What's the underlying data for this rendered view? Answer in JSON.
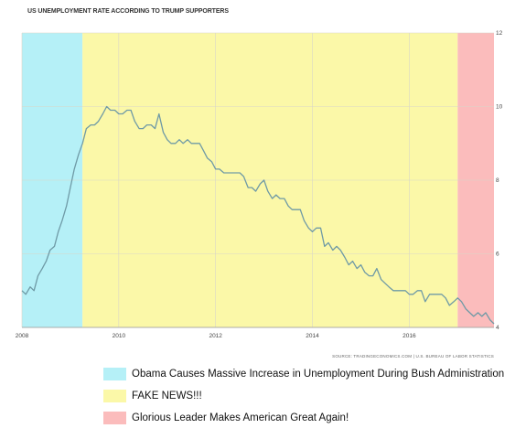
{
  "chart_data": {
    "type": "line",
    "title": "US UNEMPLOYMENT RATE ACCORDING TO TRUMP SUPPORTERS",
    "source": "SOURCE: TRADINGECONOMICS.COM | U.S. BUREAU OF LABOR STATISTICS",
    "xlim": [
      2008.0,
      2017.75
    ],
    "ylim": [
      4,
      12
    ],
    "x_ticks": [
      2008,
      2010,
      2012,
      2014,
      2016
    ],
    "y_ticks": [
      4,
      6,
      8,
      10,
      12
    ],
    "y_axis_side": "right",
    "grid": true,
    "legend_position": "bottom",
    "background_bands": [
      {
        "start": 2008.0,
        "end": 2009.25,
        "color": "#b5f0f7",
        "label": "Obama Causes Massive Increase in Unemployment During Bush Administration"
      },
      {
        "start": 2009.25,
        "end": 2017.0,
        "color": "#fbf8a8",
        "label": "FAKE NEWS!!!"
      },
      {
        "start": 2017.0,
        "end": 2017.75,
        "color": "#fbbcbc",
        "label": "Glorious Leader Makes American Great Again!"
      }
    ],
    "series": [
      {
        "color": "#6f9aa6",
        "points": [
          [
            2008.0,
            5.0
          ],
          [
            2008.08,
            4.9
          ],
          [
            2008.17,
            5.1
          ],
          [
            2008.25,
            5.0
          ],
          [
            2008.33,
            5.4
          ],
          [
            2008.42,
            5.6
          ],
          [
            2008.5,
            5.8
          ],
          [
            2008.58,
            6.1
          ],
          [
            2008.67,
            6.2
          ],
          [
            2008.75,
            6.6
          ],
          [
            2008.83,
            6.9
          ],
          [
            2008.92,
            7.3
          ],
          [
            2009.0,
            7.8
          ],
          [
            2009.08,
            8.3
          ],
          [
            2009.17,
            8.7
          ],
          [
            2009.25,
            9.0
          ],
          [
            2009.33,
            9.4
          ],
          [
            2009.42,
            9.5
          ],
          [
            2009.5,
            9.5
          ],
          [
            2009.58,
            9.6
          ],
          [
            2009.67,
            9.8
          ],
          [
            2009.75,
            10.0
          ],
          [
            2009.83,
            9.9
          ],
          [
            2009.92,
            9.9
          ],
          [
            2010.0,
            9.8
          ],
          [
            2010.08,
            9.8
          ],
          [
            2010.17,
            9.9
          ],
          [
            2010.25,
            9.9
          ],
          [
            2010.33,
            9.6
          ],
          [
            2010.42,
            9.4
          ],
          [
            2010.5,
            9.4
          ],
          [
            2010.58,
            9.5
          ],
          [
            2010.67,
            9.5
          ],
          [
            2010.75,
            9.4
          ],
          [
            2010.83,
            9.8
          ],
          [
            2010.92,
            9.3
          ],
          [
            2011.0,
            9.1
          ],
          [
            2011.08,
            9.0
          ],
          [
            2011.17,
            9.0
          ],
          [
            2011.25,
            9.1
          ],
          [
            2011.33,
            9.0
          ],
          [
            2011.42,
            9.1
          ],
          [
            2011.5,
            9.0
          ],
          [
            2011.58,
            9.0
          ],
          [
            2011.67,
            9.0
          ],
          [
            2011.75,
            8.8
          ],
          [
            2011.83,
            8.6
          ],
          [
            2011.92,
            8.5
          ],
          [
            2012.0,
            8.3
          ],
          [
            2012.08,
            8.3
          ],
          [
            2012.17,
            8.2
          ],
          [
            2012.25,
            8.2
          ],
          [
            2012.33,
            8.2
          ],
          [
            2012.42,
            8.2
          ],
          [
            2012.5,
            8.2
          ],
          [
            2012.58,
            8.1
          ],
          [
            2012.67,
            7.8
          ],
          [
            2012.75,
            7.8
          ],
          [
            2012.83,
            7.7
          ],
          [
            2012.92,
            7.9
          ],
          [
            2013.0,
            8.0
          ],
          [
            2013.08,
            7.7
          ],
          [
            2013.17,
            7.5
          ],
          [
            2013.25,
            7.6
          ],
          [
            2013.33,
            7.5
          ],
          [
            2013.42,
            7.5
          ],
          [
            2013.5,
            7.3
          ],
          [
            2013.58,
            7.2
          ],
          [
            2013.67,
            7.2
          ],
          [
            2013.75,
            7.2
          ],
          [
            2013.83,
            6.9
          ],
          [
            2013.92,
            6.7
          ],
          [
            2014.0,
            6.6
          ],
          [
            2014.08,
            6.7
          ],
          [
            2014.17,
            6.7
          ],
          [
            2014.25,
            6.2
          ],
          [
            2014.33,
            6.3
          ],
          [
            2014.42,
            6.1
          ],
          [
            2014.5,
            6.2
          ],
          [
            2014.58,
            6.1
          ],
          [
            2014.67,
            5.9
          ],
          [
            2014.75,
            5.7
          ],
          [
            2014.83,
            5.8
          ],
          [
            2014.92,
            5.6
          ],
          [
            2015.0,
            5.7
          ],
          [
            2015.08,
            5.5
          ],
          [
            2015.17,
            5.4
          ],
          [
            2015.25,
            5.4
          ],
          [
            2015.33,
            5.6
          ],
          [
            2015.42,
            5.3
          ],
          [
            2015.5,
            5.2
          ],
          [
            2015.58,
            5.1
          ],
          [
            2015.67,
            5.0
          ],
          [
            2015.75,
            5.0
          ],
          [
            2015.83,
            5.0
          ],
          [
            2015.92,
            5.0
          ],
          [
            2016.0,
            4.9
          ],
          [
            2016.08,
            4.9
          ],
          [
            2016.17,
            5.0
          ],
          [
            2016.25,
            5.0
          ],
          [
            2016.33,
            4.7
          ],
          [
            2016.42,
            4.9
          ],
          [
            2016.5,
            4.9
          ],
          [
            2016.58,
            4.9
          ],
          [
            2016.67,
            4.9
          ],
          [
            2016.75,
            4.8
          ],
          [
            2016.83,
            4.6
          ],
          [
            2016.92,
            4.7
          ],
          [
            2017.0,
            4.8
          ],
          [
            2017.08,
            4.7
          ],
          [
            2017.17,
            4.5
          ],
          [
            2017.25,
            4.4
          ],
          [
            2017.33,
            4.3
          ],
          [
            2017.42,
            4.4
          ],
          [
            2017.5,
            4.3
          ],
          [
            2017.58,
            4.4
          ],
          [
            2017.67,
            4.2
          ],
          [
            2017.75,
            4.1
          ]
        ]
      }
    ]
  }
}
